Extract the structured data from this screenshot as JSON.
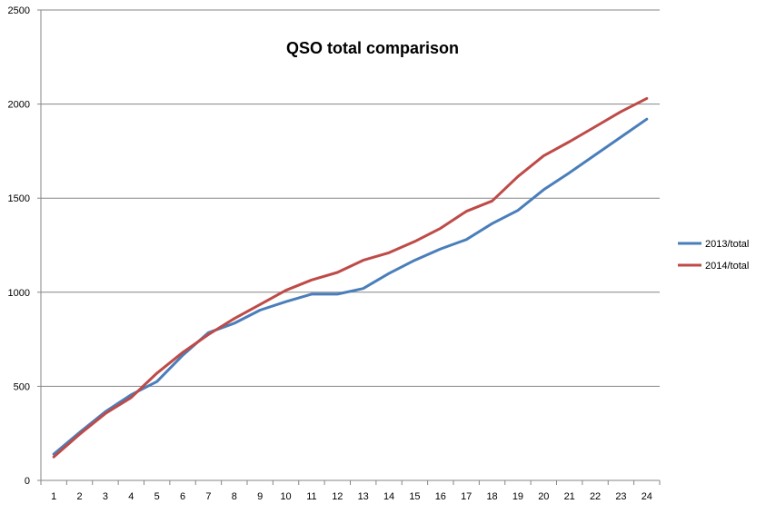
{
  "chart_data": {
    "type": "line",
    "title": "QSO total comparison",
    "xlabel": "",
    "ylabel": "",
    "ylim": [
      0,
      2500
    ],
    "yticks": [
      0,
      500,
      1000,
      1500,
      2000,
      2500
    ],
    "grid": "horizontal",
    "legend_position": "right",
    "categories": [
      "1",
      "2",
      "3",
      "4",
      "5",
      "6",
      "7",
      "8",
      "9",
      "10",
      "11",
      "12",
      "13",
      "14",
      "15",
      "16",
      "17",
      "18",
      "19",
      "20",
      "21",
      "22",
      "23",
      "24"
    ],
    "series": [
      {
        "name": "2013/total",
        "color": "#4a7ebb",
        "values": [
          140,
          255,
          365,
          455,
          525,
          665,
          785,
          835,
          905,
          950,
          990,
          990,
          1020,
          1100,
          1170,
          1230,
          1280,
          1365,
          1435,
          1545,
          1635,
          1730,
          1825,
          1920
        ]
      },
      {
        "name": "2014/total",
        "color": "#be4b48",
        "values": [
          125,
          245,
          355,
          440,
          570,
          680,
          775,
          860,
          935,
          1010,
          1065,
          1105,
          1170,
          1210,
          1270,
          1340,
          1430,
          1485,
          1615,
          1725,
          1800,
          1880,
          1960,
          2030
        ]
      }
    ]
  }
}
